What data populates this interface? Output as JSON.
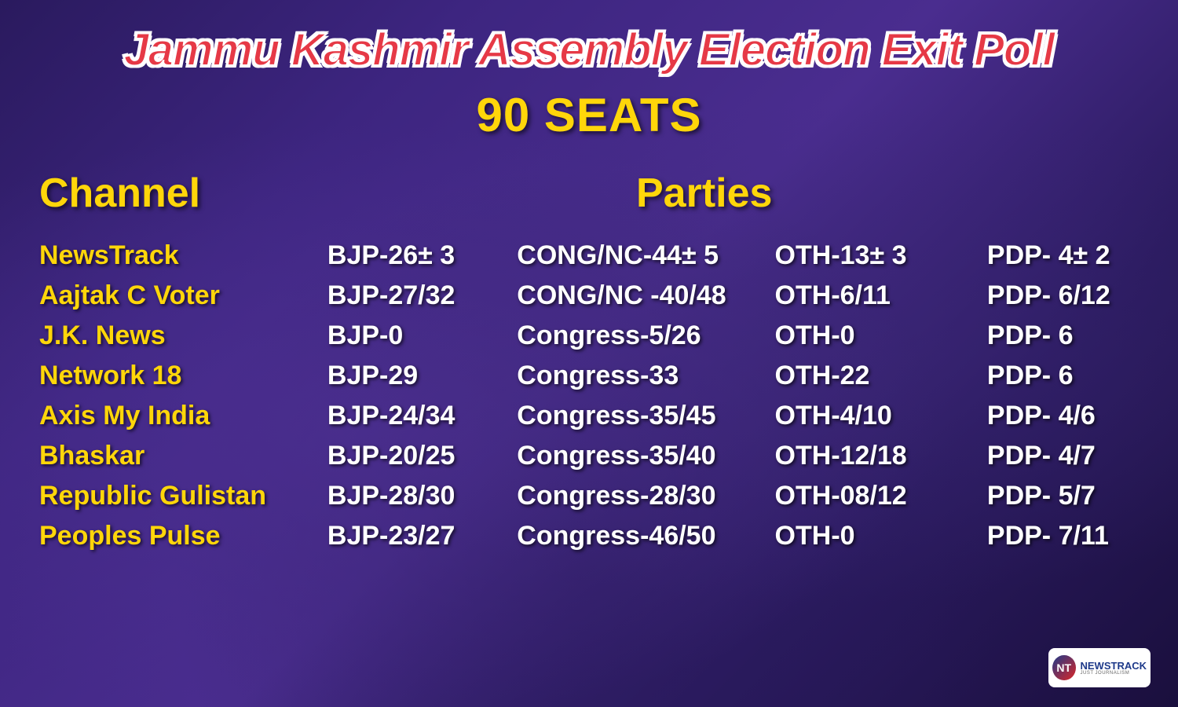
{
  "title": "Jammu Kashmir Assembly Election Exit Poll",
  "subtitle": "90 SEATS",
  "headers": {
    "channel": "Channel",
    "parties": "Parties"
  },
  "colors": {
    "title_color": "#e63946",
    "title_stroke": "#ffffff",
    "accent_yellow": "#ffd60a",
    "data_text": "#ffffff",
    "bg_purple_dark": "#1a0f3d",
    "bg_purple_mid": "#3d2580"
  },
  "typography": {
    "title_fontsize": 58,
    "subtitle_fontsize": 60,
    "header_fontsize": 52,
    "channel_fontsize": 34,
    "data_fontsize": 34,
    "font_family": "Arial, Helvetica, sans-serif"
  },
  "rows": [
    {
      "channel": "NewsTrack",
      "bjp": "BJP-26± 3",
      "cong": "CONG/NC-44± 5",
      "oth": "OTH-13± 3",
      "pdp": "PDP- 4± 2"
    },
    {
      "channel": "Aajtak C Voter",
      "bjp": "BJP-27/32",
      "cong": "CONG/NC -40/48",
      "oth": "OTH-6/11",
      "pdp": "PDP- 6/12"
    },
    {
      "channel": "J.K. News",
      "bjp": "BJP-0",
      "cong": "Congress-5/26",
      "oth": "OTH-0",
      "pdp": "PDP- 6"
    },
    {
      "channel": "Network 18",
      "bjp": "BJP-29",
      "cong": "Congress-33",
      "oth": "OTH-22",
      "pdp": "PDP- 6"
    },
    {
      "channel": "Axis My India",
      "bjp": "BJP-24/34",
      "cong": "Congress-35/45",
      "oth": "OTH-4/10",
      "pdp": "PDP- 4/6"
    },
    {
      "channel": "Bhaskar",
      "bjp": "BJP-20/25",
      "cong": "Congress-35/40",
      "oth": "OTH-12/18",
      "pdp": "PDP- 4/7"
    },
    {
      "channel": "Republic Gulistan",
      "bjp": "BJP-28/30",
      "cong": "Congress-28/30",
      "oth": "OTH-08/12",
      "pdp": "PDP- 5/7"
    },
    {
      "channel": "Peoples Pulse",
      "bjp": "BJP-23/27",
      "cong": "Congress-46/50",
      "oth": "OTH-0",
      "pdp": "PDP- 7/11"
    }
  ],
  "logo": {
    "icon_text": "NT",
    "brand": "NEWSTRACK",
    "tagline": "JUST JOURNALISM"
  }
}
